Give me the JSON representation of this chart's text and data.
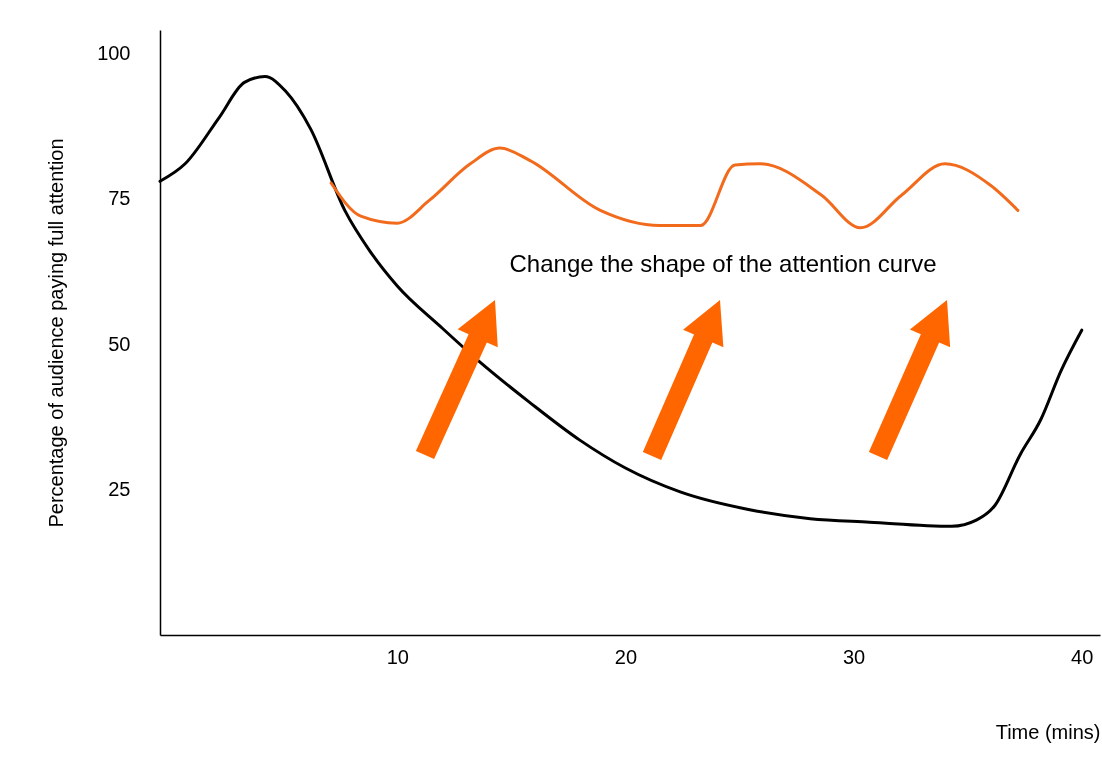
{
  "chart_data": {
    "type": "line",
    "xlabel": "Time  (mins)",
    "ylabel": "Percentage of audience paying full attention",
    "xlim": [
      -0.4,
      40.8
    ],
    "ylim": [
      0,
      104
    ],
    "xticks": [
      10,
      20,
      30,
      40
    ],
    "yticks": [
      25,
      50,
      75,
      100
    ],
    "grid": false,
    "marker": "none",
    "line_style": "solid",
    "annotations": [
      "Change the shape of the attention curve"
    ],
    "series": [
      {
        "color": "#000000",
        "x": [
          -0.4,
          0.7,
          2.2,
          3.3,
          4.2,
          5.1,
          6.2,
          7.7,
          8.8,
          10,
          11.9,
          13.6,
          15.8,
          18,
          20,
          22.4,
          25.5,
          28.1,
          30.7,
          34.3,
          35.4,
          36.2,
          37.3,
          38.2,
          39.1,
          40
        ],
        "values": [
          78,
          81,
          89,
          95,
          96,
          93.5,
          87,
          73,
          66,
          60,
          53,
          47,
          40,
          33.5,
          28.7,
          24.6,
          21.5,
          20,
          19.4,
          18.7,
          19.8,
          22.3,
          31,
          37,
          45.5,
          52.4
        ]
      },
      {
        "color": "#f26b1d",
        "x": [
          7.1,
          8.4,
          10,
          11.4,
          13.2,
          14.5,
          15.8,
          18.9,
          21.5,
          23.3,
          24.8,
          25.9,
          28.6,
          30.3,
          32.1,
          34,
          36,
          37.2
        ],
        "values": [
          77.7,
          72,
          70.8,
          74.7,
          81,
          83.7,
          81.6,
          73,
          70.4,
          70.4,
          80.8,
          81,
          75.6,
          70,
          75.6,
          81,
          77.3,
          73
        ]
      }
    ]
  }
}
